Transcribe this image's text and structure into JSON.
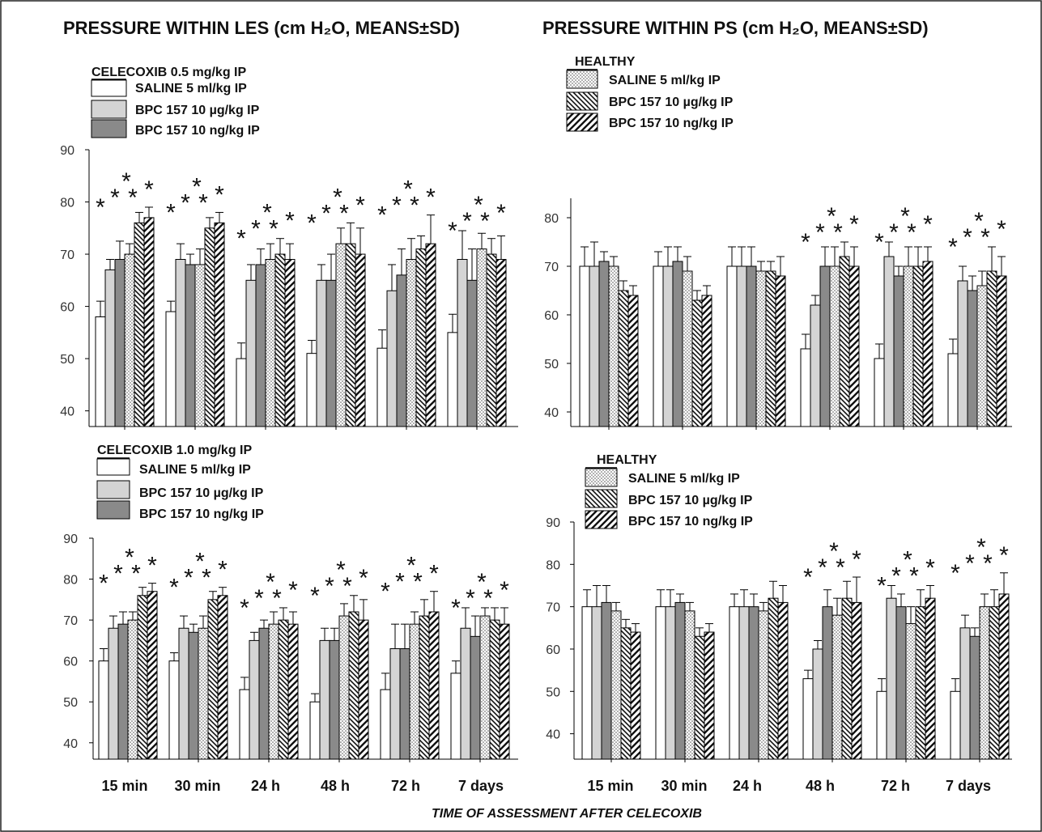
{
  "titles": {
    "les": "PRESSURE WITHIN LES (cm H₂O, MEANS±SD)",
    "ps": "PRESSURE WITHIN PS (cm H₂O, MEANS±SD)"
  },
  "legends": {
    "top_left_title": "CELECOXIB 0.5 mg/kg IP",
    "bottom_left_title": "CELECOXIB 1.0 mg/kg IP",
    "healthy_title": "HEALTHY",
    "saline": "SALINE 5 ml/kg IP",
    "bpc_ug": "BPC 157 10 µg/kg IP",
    "bpc_ng": "BPC 157 10 ng/kg IP"
  },
  "x_axis_title": "TIME OF ASSESSMENT AFTER CELECOXIB",
  "star": "*",
  "colors": {
    "bpc_ug_fill": "#d4d4d4",
    "bpc_ng_fill": "#8a8a8a",
    "axis": "#000000",
    "tick_text": "#333333"
  },
  "chart_data": [
    {
      "type": "bar",
      "panel": "top-left",
      "categories": [
        "15 min",
        "30 min",
        "24 h",
        "48 h",
        "72 h",
        "7 days"
      ],
      "yticks": [
        "40",
        "50",
        "60",
        "70",
        "80",
        "90"
      ],
      "ylim": [
        37,
        90
      ],
      "legend": "top-left",
      "series": [
        {
          "values": [
            58,
            59,
            50,
            51,
            52,
            55
          ],
          "sd": [
            3,
            2,
            3,
            2.5,
            3.5,
            3.5
          ]
        },
        {
          "values": [
            67,
            69,
            65,
            65,
            63,
            69
          ],
          "sd": [
            2,
            3,
            3,
            3,
            5,
            5.5
          ]
        },
        {
          "values": [
            69,
            68,
            68,
            65,
            66,
            65
          ],
          "sd": [
            3.5,
            2,
            3,
            5,
            5,
            6
          ]
        },
        {
          "values": [
            70,
            68,
            69,
            72,
            69,
            71
          ],
          "sd": [
            2,
            3,
            3,
            3,
            4,
            3
          ]
        },
        {
          "values": [
            76,
            75,
            70,
            72,
            71,
            70
          ],
          "sd": [
            2,
            2,
            3,
            4,
            2.5,
            3
          ]
        },
        {
          "values": [
            77,
            76,
            69,
            70,
            72,
            69
          ],
          "sd": [
            2,
            2,
            3,
            5,
            5.5,
            4.5
          ]
        }
      ],
      "star_labels": [
        {
          "category": "15 min",
          "rows": [
            [
              "*",
              "*"
            ],
            [
              "*"
            ],
            [
              "*",
              "*"
            ]
          ]
        },
        {
          "category": "30 min",
          "rows": [
            [
              "*",
              "*"
            ],
            [
              "*"
            ],
            [
              "*",
              "*"
            ]
          ]
        },
        {
          "category": "24 h",
          "rows": [
            [
              "*",
              "*"
            ],
            [
              "*"
            ],
            [
              "*",
              "*"
            ]
          ]
        },
        {
          "category": "48 h",
          "rows": [
            [
              "*",
              "*"
            ],
            [
              "*"
            ],
            [
              "*",
              "*"
            ]
          ]
        },
        {
          "category": "72 h",
          "rows": [
            [
              "*",
              "*"
            ],
            [
              "*"
            ],
            [
              "*",
              "*"
            ]
          ]
        },
        {
          "category": "7 days",
          "rows": [
            [
              "*",
              "*"
            ],
            [
              "*"
            ],
            [
              "*",
              "*"
            ]
          ]
        }
      ]
    },
    {
      "type": "bar",
      "panel": "top-right",
      "categories": [
        "15 min",
        "30 min",
        "24 h",
        "48 h",
        "72 h",
        "7 days"
      ],
      "yticks": [
        "40",
        "50",
        "60",
        "70",
        "80"
      ],
      "ylim": [
        37,
        84
      ],
      "legend": "top-left",
      "series": [
        {
          "values": [
            70,
            70,
            70,
            53,
            51,
            52
          ],
          "sd": [
            4,
            3,
            4,
            3,
            3,
            3
          ]
        },
        {
          "values": [
            70,
            70,
            70,
            62,
            72,
            67
          ],
          "sd": [
            5,
            4,
            4,
            2,
            3,
            3
          ]
        },
        {
          "values": [
            71,
            71,
            70,
            70,
            68,
            65
          ],
          "sd": [
            2,
            3,
            4,
            4,
            2,
            3
          ]
        },
        {
          "values": [
            70,
            69,
            69,
            70,
            70,
            66
          ],
          "sd": [
            2,
            3,
            2,
            4,
            4,
            3
          ]
        },
        {
          "values": [
            65,
            63,
            69,
            72,
            70,
            69
          ],
          "sd": [
            2,
            2,
            2,
            3,
            4,
            5
          ]
        },
        {
          "values": [
            64,
            64,
            68,
            70,
            71,
            68
          ],
          "sd": [
            2,
            2,
            4,
            4,
            3,
            4
          ]
        }
      ],
      "star_labels": [
        {
          "category": "48 h",
          "rows": [
            [
              "*",
              "*"
            ],
            [
              "*"
            ],
            [
              "*",
              "*"
            ]
          ]
        },
        {
          "category": "72 h",
          "rows": [
            [
              "*",
              "*"
            ],
            [
              "*"
            ],
            [
              "*",
              "*"
            ]
          ]
        },
        {
          "category": "7 days",
          "rows": [
            [
              "*",
              "*"
            ],
            [
              "*"
            ],
            [
              "*",
              "*"
            ]
          ]
        }
      ]
    },
    {
      "type": "bar",
      "panel": "bottom-left",
      "categories": [
        "15 min",
        "30 min",
        "24 h",
        "48 h",
        "72 h",
        "7 days"
      ],
      "yticks": [
        "40",
        "50",
        "60",
        "70",
        "80",
        "90"
      ],
      "ylim": [
        36,
        90
      ],
      "legend": "top-left",
      "series": [
        {
          "values": [
            60,
            60,
            53,
            50,
            53,
            57
          ],
          "sd": [
            3,
            2,
            3,
            2,
            4,
            3
          ]
        },
        {
          "values": [
            68,
            68,
            65,
            65,
            63,
            68
          ],
          "sd": [
            3,
            3,
            2,
            3,
            6,
            5
          ]
        },
        {
          "values": [
            69,
            67,
            68,
            65,
            63,
            66
          ],
          "sd": [
            3,
            2,
            2,
            3,
            6,
            5
          ]
        },
        {
          "values": [
            70,
            68,
            69,
            71,
            69,
            71
          ],
          "sd": [
            2,
            3,
            3,
            3,
            3,
            2
          ]
        },
        {
          "values": [
            76,
            75,
            70,
            72,
            71,
            70
          ],
          "sd": [
            2,
            2,
            3,
            4,
            4,
            3
          ]
        },
        {
          "values": [
            77,
            76,
            69,
            70,
            72,
            69
          ],
          "sd": [
            2,
            2,
            3,
            5,
            5,
            4
          ]
        }
      ],
      "star_labels": [
        {
          "category": "15 min",
          "rows": [
            [
              "*",
              "*"
            ],
            [
              "*"
            ],
            [
              "*",
              "*"
            ]
          ]
        },
        {
          "category": "30 min",
          "rows": [
            [
              "*",
              "*"
            ],
            [
              "*"
            ],
            [
              "*",
              "*"
            ]
          ]
        },
        {
          "category": "24 h",
          "rows": [
            [
              "*",
              "*"
            ],
            [
              "*"
            ],
            [
              "*",
              "*"
            ]
          ]
        },
        {
          "category": "48 h",
          "rows": [
            [
              "*",
              "*"
            ],
            [
              "*"
            ],
            [
              "*",
              "*"
            ]
          ]
        },
        {
          "category": "72 h",
          "rows": [
            [
              "*",
              "*"
            ],
            [
              "*"
            ],
            [
              "*",
              "*"
            ]
          ]
        },
        {
          "category": "7 days",
          "rows": [
            [
              "*",
              "*"
            ],
            [
              "*"
            ],
            [
              "*",
              "*"
            ]
          ]
        }
      ]
    },
    {
      "type": "bar",
      "panel": "bottom-right",
      "categories": [
        "15 min",
        "30 min",
        "24 h",
        "48 h",
        "72 h",
        "7 days"
      ],
      "yticks": [
        "40",
        "50",
        "60",
        "70",
        "80",
        "90"
      ],
      "ylim": [
        34,
        90
      ],
      "legend": "top-left",
      "series": [
        {
          "values": [
            70,
            70,
            70,
            53,
            50,
            50
          ],
          "sd": [
            4,
            4,
            3,
            2,
            3,
            3
          ]
        },
        {
          "values": [
            70,
            70,
            70,
            60,
            72,
            65
          ],
          "sd": [
            5,
            4,
            4,
            2,
            3,
            3
          ]
        },
        {
          "values": [
            71,
            71,
            70,
            70,
            70,
            63
          ],
          "sd": [
            4,
            2,
            3,
            4,
            3,
            2
          ]
        },
        {
          "values": [
            69,
            69,
            69,
            68,
            66,
            70
          ],
          "sd": [
            2,
            2,
            2,
            4,
            4,
            3
          ]
        },
        {
          "values": [
            65,
            63,
            72,
            72,
            70,
            70
          ],
          "sd": [
            2,
            2,
            4,
            4,
            4,
            4
          ]
        },
        {
          "values": [
            64,
            64,
            71,
            71,
            72,
            73
          ],
          "sd": [
            2,
            2,
            4,
            6,
            3,
            5
          ]
        }
      ],
      "star_labels": [
        {
          "category": "48 h",
          "rows": [
            [
              "*",
              "*"
            ],
            [
              "*"
            ],
            [
              "*",
              "*"
            ]
          ]
        },
        {
          "category": "72 h",
          "rows": [
            [
              "*",
              "*"
            ],
            [
              "*"
            ],
            [
              "*",
              "*"
            ]
          ]
        },
        {
          "category": "7 days",
          "rows": [
            [
              "*",
              "*"
            ],
            [
              "*"
            ],
            [
              "*",
              "*"
            ]
          ]
        }
      ]
    }
  ]
}
